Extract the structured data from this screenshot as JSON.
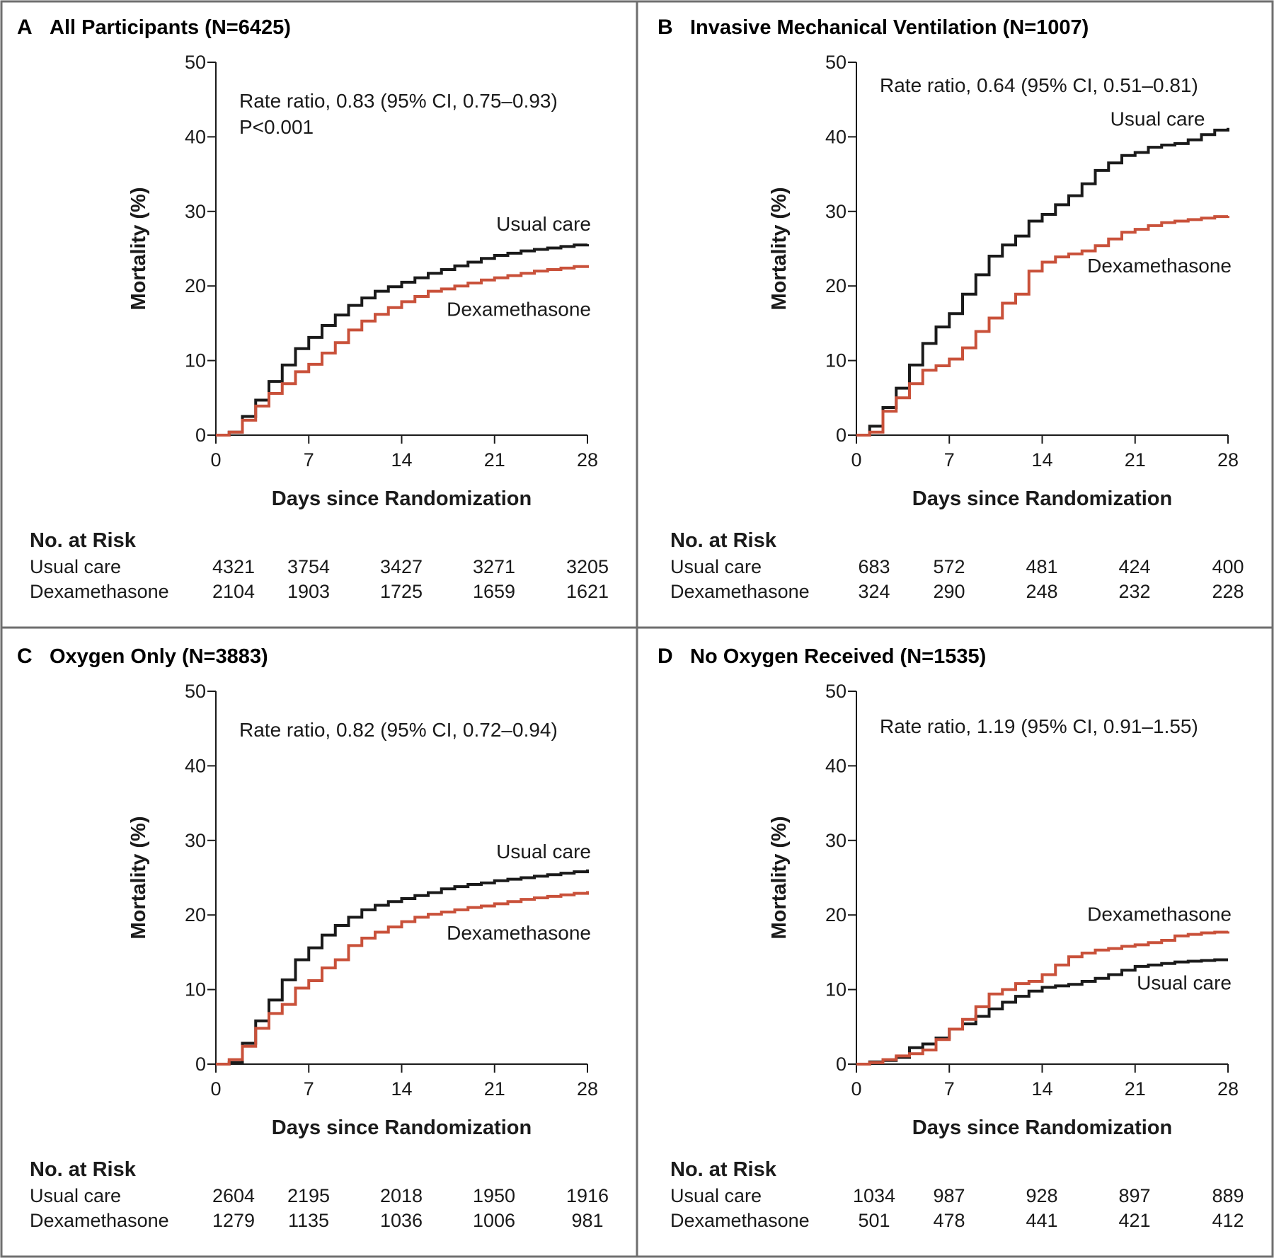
{
  "colors": {
    "usual_care": "#1a1a1a",
    "dexamethasone": "#c9513a",
    "frame": "#6e6e6e",
    "axis": "#1a1a1a"
  },
  "x_axis_label": "Days since Randomization",
  "y_axis_label": "Mortality (%)",
  "risk_table_title": "No. at Risk",
  "chart_data": [
    {
      "type": "line",
      "step": true,
      "letter": "A",
      "title": "All Participants (N=6425)",
      "annotations": [
        "Rate ratio, 0.83 (95% CI, 0.75–0.93)",
        "P<0.001"
      ],
      "xlabel": "Days since Randomization",
      "ylabel": "Mortality (%)",
      "xlim": [
        0,
        28
      ],
      "ylim": [
        0,
        50
      ],
      "xticks": [
        0,
        7,
        14,
        21,
        28
      ],
      "yticks": [
        0,
        10,
        20,
        30,
        40,
        50
      ],
      "grid": false,
      "series": [
        {
          "name": "Usual care",
          "color": "#1a1a1a",
          "x": [
            0,
            1,
            2,
            3,
            4,
            5,
            6,
            7,
            8,
            9,
            10,
            11,
            12,
            13,
            14,
            15,
            16,
            17,
            18,
            19,
            20,
            21,
            22,
            23,
            24,
            25,
            26,
            27,
            28
          ],
          "y": [
            0,
            0.4,
            2.5,
            4.7,
            7.2,
            9.4,
            11.6,
            13.1,
            14.7,
            16.1,
            17.4,
            18.4,
            19.3,
            19.9,
            20.5,
            21.1,
            21.7,
            22.2,
            22.7,
            23.2,
            23.7,
            24.1,
            24.4,
            24.7,
            24.9,
            25.1,
            25.3,
            25.5,
            25.6
          ]
        },
        {
          "name": "Dexamethasone",
          "color": "#c9513a",
          "x": [
            0,
            1,
            2,
            3,
            4,
            5,
            6,
            7,
            8,
            9,
            10,
            11,
            12,
            13,
            14,
            15,
            16,
            17,
            18,
            19,
            20,
            21,
            22,
            23,
            24,
            25,
            26,
            27,
            28
          ],
          "y": [
            0,
            0.4,
            2.0,
            3.9,
            5.6,
            6.9,
            8.5,
            9.5,
            11.0,
            12.4,
            14.1,
            15.3,
            16.2,
            17.1,
            17.9,
            18.6,
            19.3,
            19.6,
            20.0,
            20.4,
            20.8,
            21.1,
            21.4,
            21.7,
            22.0,
            22.2,
            22.4,
            22.6,
            22.8
          ]
        }
      ],
      "series_labels": [
        {
          "text": "Usual care",
          "x": 28,
          "y": 27.4
        },
        {
          "text": "Dexamethasone",
          "x": 28,
          "y": 16.0
        }
      ],
      "risk_table": {
        "rows": [
          {
            "label": "Usual care",
            "values": [
              "4321",
              "3754",
              "3427",
              "3271",
              "3205"
            ]
          },
          {
            "label": "Dexamethasone",
            "values": [
              "2104",
              "1903",
              "1725",
              "1659",
              "1621"
            ]
          }
        ]
      }
    },
    {
      "type": "line",
      "step": true,
      "letter": "B",
      "title": "Invasive Mechanical Ventilation (N=1007)",
      "annotations": [
        "Rate ratio, 0.64 (95% CI, 0.51–0.81)"
      ],
      "xlabel": "Days since Randomization",
      "ylabel": "Mortality (%)",
      "xlim": [
        0,
        28
      ],
      "ylim": [
        0,
        50
      ],
      "xticks": [
        0,
        7,
        14,
        21,
        28
      ],
      "yticks": [
        0,
        10,
        20,
        30,
        40,
        50
      ],
      "grid": false,
      "series": [
        {
          "name": "Usual care",
          "color": "#1a1a1a",
          "x": [
            0,
            1,
            2,
            3,
            4,
            5,
            6,
            7,
            8,
            9,
            10,
            11,
            12,
            13,
            14,
            15,
            16,
            17,
            18,
            19,
            20,
            21,
            22,
            23,
            24,
            25,
            26,
            27,
            28
          ],
          "y": [
            0,
            1.2,
            3.7,
            6.3,
            9.4,
            12.3,
            14.5,
            16.3,
            18.9,
            21.5,
            24.0,
            25.5,
            26.7,
            28.7,
            29.6,
            30.9,
            32.1,
            33.7,
            35.5,
            36.5,
            37.5,
            37.9,
            38.6,
            38.9,
            39.1,
            39.6,
            40.3,
            40.9,
            41.2
          ]
        },
        {
          "name": "Dexamethasone",
          "color": "#c9513a",
          "x": [
            0,
            1,
            2,
            3,
            4,
            5,
            6,
            7,
            8,
            9,
            10,
            11,
            12,
            13,
            14,
            15,
            16,
            17,
            18,
            19,
            20,
            21,
            22,
            23,
            24,
            25,
            26,
            27,
            28
          ],
          "y": [
            0,
            0.4,
            3.2,
            5.0,
            6.9,
            8.7,
            9.3,
            10.2,
            11.7,
            13.9,
            15.7,
            17.7,
            18.9,
            22.0,
            23.2,
            23.9,
            24.3,
            24.7,
            25.4,
            26.3,
            27.2,
            27.6,
            28.1,
            28.5,
            28.7,
            28.9,
            29.1,
            29.3,
            29.4
          ]
        }
      ],
      "series_labels": [
        {
          "text": "Usual care",
          "x": 26,
          "y": 41.5
        },
        {
          "text": "Dexamethasone",
          "x": 28,
          "y": 21.8
        }
      ],
      "risk_table": {
        "rows": [
          {
            "label": "Usual care",
            "values": [
              "683",
              "572",
              "481",
              "424",
              "400"
            ]
          },
          {
            "label": "Dexamethasone",
            "values": [
              "324",
              "290",
              "248",
              "232",
              "228"
            ]
          }
        ]
      }
    },
    {
      "type": "line",
      "step": true,
      "letter": "C",
      "title": "Oxygen Only (N=3883)",
      "annotations": [
        "Rate ratio, 0.82 (95% CI, 0.72–0.94)"
      ],
      "xlabel": "Days since Randomization",
      "ylabel": "Mortality (%)",
      "xlim": [
        0,
        28
      ],
      "ylim": [
        0,
        50
      ],
      "xticks": [
        0,
        7,
        14,
        21,
        28
      ],
      "yticks": [
        0,
        10,
        20,
        30,
        40,
        50
      ],
      "grid": false,
      "series": [
        {
          "name": "Usual care",
          "color": "#1a1a1a",
          "x": [
            0,
            1,
            2,
            3,
            4,
            5,
            6,
            7,
            8,
            9,
            10,
            11,
            12,
            13,
            14,
            15,
            16,
            17,
            18,
            19,
            20,
            21,
            22,
            23,
            24,
            25,
            26,
            27,
            28
          ],
          "y": [
            0,
            0.2,
            2.8,
            5.8,
            8.6,
            11.3,
            14.0,
            15.6,
            17.3,
            18.6,
            19.7,
            20.7,
            21.3,
            21.8,
            22.2,
            22.6,
            23.0,
            23.5,
            23.8,
            24.1,
            24.3,
            24.6,
            24.8,
            25.0,
            25.2,
            25.4,
            25.6,
            25.8,
            26.1
          ]
        },
        {
          "name": "Dexamethasone",
          "color": "#c9513a",
          "x": [
            0,
            1,
            2,
            3,
            4,
            5,
            6,
            7,
            8,
            9,
            10,
            11,
            12,
            13,
            14,
            15,
            16,
            17,
            18,
            19,
            20,
            21,
            22,
            23,
            24,
            25,
            26,
            27,
            28
          ],
          "y": [
            0,
            0.6,
            2.4,
            4.8,
            6.8,
            8.0,
            10.2,
            11.2,
            12.9,
            14.0,
            15.9,
            16.9,
            17.7,
            18.4,
            19.1,
            19.7,
            20.1,
            20.4,
            20.7,
            21.0,
            21.2,
            21.5,
            21.8,
            22.1,
            22.3,
            22.5,
            22.7,
            22.9,
            23.2
          ]
        }
      ],
      "series_labels": [
        {
          "text": "Usual care",
          "x": 28,
          "y": 27.6
        },
        {
          "text": "Dexamethasone",
          "x": 28,
          "y": 16.7
        }
      ],
      "risk_table": {
        "rows": [
          {
            "label": "Usual care",
            "values": [
              "2604",
              "2195",
              "2018",
              "1950",
              "1916"
            ]
          },
          {
            "label": "Dexamethasone",
            "values": [
              "1279",
              "1135",
              "1036",
              "1006",
              "981"
            ]
          }
        ]
      }
    },
    {
      "type": "line",
      "step": true,
      "letter": "D",
      "title": "No Oxygen Received (N=1535)",
      "annotations": [
        "Rate ratio, 1.19 (95% CI, 0.91–1.55)"
      ],
      "xlabel": "Days since Randomization",
      "ylabel": "Mortality (%)",
      "xlim": [
        0,
        28
      ],
      "ylim": [
        0,
        50
      ],
      "xticks": [
        0,
        7,
        14,
        21,
        28
      ],
      "yticks": [
        0,
        10,
        20,
        30,
        40,
        50
      ],
      "grid": false,
      "series": [
        {
          "name": "Usual care",
          "color": "#1a1a1a",
          "x": [
            0,
            1,
            2,
            3,
            4,
            5,
            6,
            7,
            8,
            9,
            10,
            11,
            12,
            13,
            14,
            15,
            16,
            17,
            18,
            19,
            20,
            21,
            22,
            23,
            24,
            25,
            26,
            27,
            28
          ],
          "y": [
            0,
            0.3,
            0.5,
            0.9,
            2.2,
            2.7,
            3.5,
            4.7,
            5.4,
            6.4,
            7.4,
            8.3,
            9.1,
            9.8,
            10.3,
            10.5,
            10.7,
            11.1,
            11.5,
            12.0,
            12.6,
            13.1,
            13.3,
            13.5,
            13.7,
            13.8,
            13.9,
            14.0,
            14.0
          ]
        },
        {
          "name": "Dexamethasone",
          "color": "#c9513a",
          "x": [
            0,
            1,
            2,
            3,
            4,
            5,
            6,
            7,
            8,
            9,
            10,
            11,
            12,
            13,
            14,
            15,
            16,
            17,
            18,
            19,
            20,
            21,
            22,
            23,
            24,
            25,
            26,
            27,
            28
          ],
          "y": [
            0,
            0.2,
            0.6,
            1.1,
            1.4,
            1.9,
            3.3,
            4.7,
            6.0,
            7.7,
            9.4,
            10.0,
            10.8,
            11.1,
            12.0,
            13.3,
            14.4,
            14.9,
            15.3,
            15.5,
            15.8,
            16.0,
            16.3,
            16.6,
            17.2,
            17.4,
            17.6,
            17.7,
            17.8
          ]
        }
      ],
      "series_labels": [
        {
          "text": "Dexamethasone",
          "x": 28,
          "y": 19.2
        },
        {
          "text": "Usual care",
          "x": 28,
          "y": 10.0
        }
      ],
      "risk_table": {
        "rows": [
          {
            "label": "Usual care",
            "values": [
              "1034",
              "987",
              "928",
              "897",
              "889"
            ]
          },
          {
            "label": "Dexamethasone",
            "values": [
              "501",
              "478",
              "441",
              "421",
              "412"
            ]
          }
        ]
      }
    }
  ]
}
